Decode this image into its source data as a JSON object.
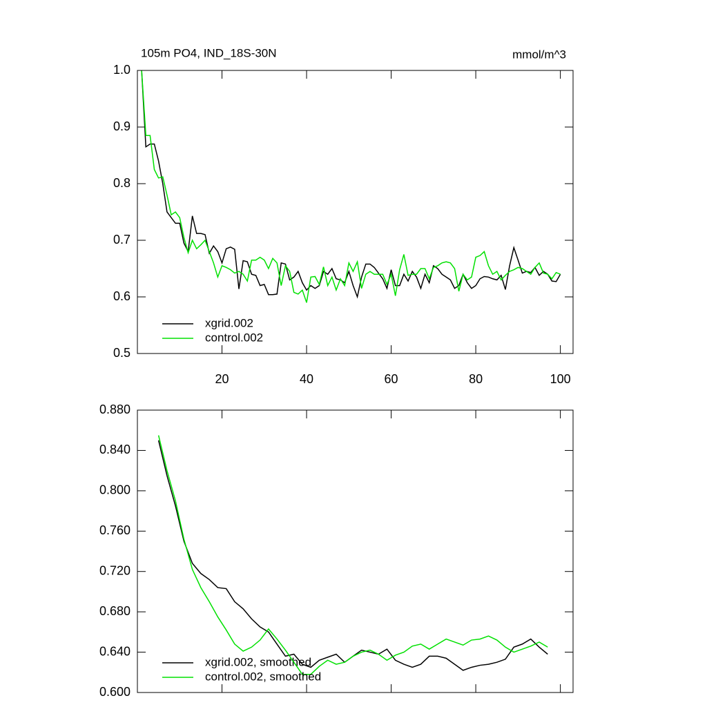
{
  "chart_data": [
    {
      "type": "line",
      "title": "105m PO4, IND_18S-30N",
      "units": "mmol/m^3",
      "xlim": [
        0,
        103
      ],
      "xticks": [
        20,
        40,
        60,
        80,
        100
      ],
      "ylim": [
        0.5,
        1.0
      ],
      "yticks": [
        0.5,
        0.6,
        0.7,
        0.8,
        0.9,
        {
          "value": 1.0,
          "label": "1.0"
        }
      ],
      "legend": "lower left",
      "x": [
        1,
        2,
        3,
        4,
        5,
        6,
        7,
        8,
        9,
        10,
        11,
        12,
        13,
        14,
        15,
        16,
        17,
        18,
        19,
        20,
        21,
        22,
        23,
        24,
        25,
        26,
        27,
        28,
        29,
        30,
        31,
        32,
        33,
        34,
        35,
        36,
        37,
        38,
        39,
        40,
        41,
        42,
        43,
        44,
        45,
        46,
        47,
        48,
        49,
        50,
        51,
        52,
        53,
        54,
        55,
        56,
        57,
        58,
        59,
        60,
        61,
        62,
        63,
        64,
        65,
        66,
        67,
        68,
        69,
        70,
        71,
        72,
        73,
        74,
        75,
        76,
        77,
        78,
        79,
        80,
        81,
        82,
        83,
        84,
        85,
        86,
        87,
        88,
        89,
        90,
        91,
        92,
        93,
        94,
        95,
        96,
        97,
        98,
        99,
        100
      ],
      "series": [
        {
          "name": "xgrid.002",
          "color": "#000000",
          "values": [
            1.0,
            0.865,
            0.87,
            0.87,
            0.84,
            0.8,
            0.75,
            0.74,
            0.73,
            0.73,
            0.695,
            0.68,
            0.743,
            0.712,
            0.712,
            0.71,
            0.677,
            0.69,
            0.68,
            0.66,
            0.685,
            0.688,
            0.684,
            0.614,
            0.664,
            0.662,
            0.64,
            0.638,
            0.62,
            0.622,
            0.604,
            0.604,
            0.605,
            0.66,
            0.658,
            0.63,
            0.635,
            0.645,
            0.625,
            0.612,
            0.62,
            0.615,
            0.62,
            0.645,
            0.64,
            0.65,
            0.632,
            0.63,
            0.625,
            0.645,
            0.62,
            0.6,
            0.635,
            0.658,
            0.658,
            0.652,
            0.642,
            0.632,
            0.615,
            0.648,
            0.62,
            0.62,
            0.64,
            0.628,
            0.645,
            0.635,
            0.615,
            0.64,
            0.625,
            0.655,
            0.65,
            0.64,
            0.635,
            0.63,
            0.615,
            0.62,
            0.64,
            0.625,
            0.615,
            0.62,
            0.632,
            0.636,
            0.635,
            0.632,
            0.63,
            0.638,
            0.613,
            0.655,
            0.687,
            0.665,
            0.642,
            0.645,
            0.643,
            0.652,
            0.638,
            0.645,
            0.64,
            0.628,
            0.627,
            0.64
          ]
        },
        {
          "name": "control.002",
          "color": "#00e000",
          "values": [
            1.0,
            0.885,
            0.885,
            0.825,
            0.81,
            0.812,
            0.78,
            0.745,
            0.75,
            0.74,
            0.705,
            0.678,
            0.7,
            0.685,
            0.692,
            0.7,
            0.68,
            0.66,
            0.635,
            0.655,
            0.652,
            0.648,
            0.642,
            0.645,
            0.64,
            0.628,
            0.665,
            0.665,
            0.67,
            0.665,
            0.65,
            0.668,
            0.66,
            0.62,
            0.655,
            0.645,
            0.608,
            0.605,
            0.612,
            0.59,
            0.635,
            0.636,
            0.622,
            0.653,
            0.62,
            0.635,
            0.612,
            0.632,
            0.62,
            0.66,
            0.645,
            0.662,
            0.615,
            0.64,
            0.645,
            0.64,
            0.64,
            0.64,
            0.622,
            0.64,
            0.602,
            0.648,
            0.675,
            0.638,
            0.64,
            0.64,
            0.65,
            0.65,
            0.632,
            0.652,
            0.655,
            0.66,
            0.662,
            0.66,
            0.65,
            0.61,
            0.64,
            0.63,
            0.635,
            0.67,
            0.673,
            0.68,
            0.655,
            0.64,
            0.645,
            0.63,
            0.638,
            0.645,
            0.648,
            0.652,
            0.65,
            0.645,
            0.64,
            0.652,
            0.66,
            0.642,
            0.64,
            0.632,
            0.643,
            0.64
          ]
        }
      ]
    },
    {
      "type": "line",
      "xlim": [
        0,
        103
      ],
      "ylim": [
        0.6,
        0.88
      ],
      "yticks": [
        {
          "value": 0.6,
          "label": "0.600"
        },
        {
          "value": 0.64,
          "label": "0.640"
        },
        {
          "value": 0.68,
          "label": "0.680"
        },
        {
          "value": 0.72,
          "label": "0.720"
        },
        {
          "value": 0.76,
          "label": "0.760"
        },
        {
          "value": 0.8,
          "label": "0.800"
        },
        {
          "value": 0.84,
          "label": "0.840"
        },
        {
          "value": 0.88,
          "label": "0.880"
        }
      ],
      "legend": "lower left",
      "x": [
        5,
        7,
        9,
        11,
        13,
        15,
        17,
        19,
        21,
        23,
        25,
        27,
        29,
        31,
        33,
        35,
        37,
        39,
        41,
        43,
        45,
        47,
        49,
        51,
        53,
        55,
        57,
        59,
        61,
        63,
        65,
        67,
        69,
        71,
        73,
        75,
        77,
        79,
        81,
        83,
        85,
        87,
        89,
        91,
        93,
        95,
        97
      ],
      "series": [
        {
          "name": "xgrid.002, smoothed",
          "color": "#000000",
          "values": [
            0.85,
            0.815,
            0.785,
            0.75,
            0.728,
            0.718,
            0.712,
            0.704,
            0.703,
            0.69,
            0.683,
            0.673,
            0.665,
            0.66,
            0.648,
            0.636,
            0.638,
            0.628,
            0.625,
            0.632,
            0.635,
            0.638,
            0.63,
            0.636,
            0.642,
            0.64,
            0.638,
            0.643,
            0.632,
            0.628,
            0.625,
            0.628,
            0.636,
            0.636,
            0.634,
            0.628,
            0.622,
            0.625,
            0.627,
            0.628,
            0.63,
            0.633,
            0.645,
            0.648,
            0.653,
            0.645,
            0.638
          ]
        },
        {
          "name": "control.002, smoothed",
          "color": "#00e000",
          "values": [
            0.855,
            0.82,
            0.79,
            0.752,
            0.722,
            0.704,
            0.69,
            0.675,
            0.662,
            0.648,
            0.641,
            0.645,
            0.652,
            0.663,
            0.653,
            0.642,
            0.63,
            0.618,
            0.618,
            0.626,
            0.632,
            0.628,
            0.63,
            0.636,
            0.64,
            0.642,
            0.638,
            0.632,
            0.637,
            0.64,
            0.646,
            0.648,
            0.643,
            0.648,
            0.653,
            0.65,
            0.647,
            0.652,
            0.653,
            0.656,
            0.652,
            0.645,
            0.64,
            0.643,
            0.646,
            0.65,
            0.645
          ]
        }
      ]
    }
  ]
}
